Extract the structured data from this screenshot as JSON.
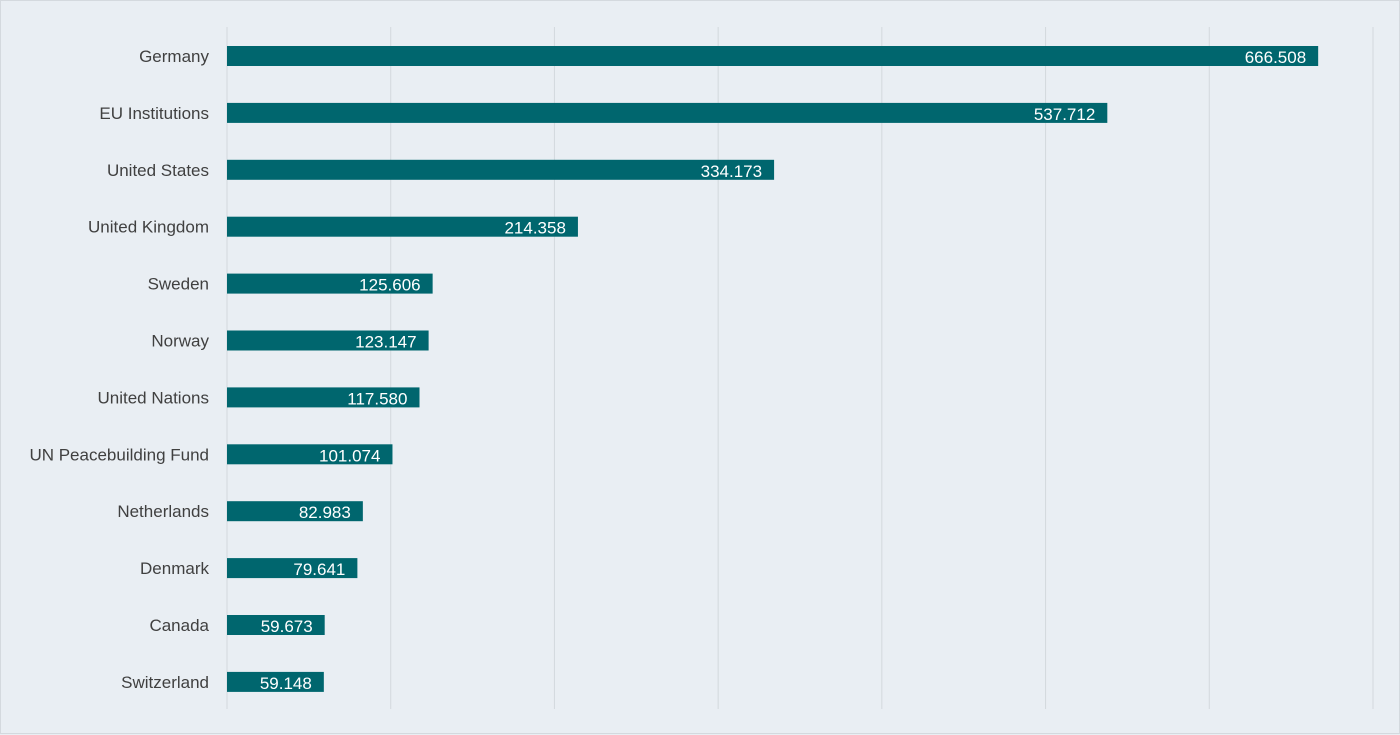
{
  "chart_data": {
    "type": "bar",
    "orientation": "horizontal",
    "categories": [
      "Germany",
      "EU Institutions",
      "United States",
      "United Kingdom",
      "Sweden",
      "Norway",
      "United Nations",
      "UN Peacebuilding Fund",
      "Netherlands",
      "Denmark",
      "Canada",
      "Switzerland"
    ],
    "values": [
      666.508,
      537.712,
      334.173,
      214.358,
      125.606,
      123.147,
      117.58,
      101.074,
      82.983,
      79.641,
      59.673,
      59.148
    ],
    "data_labels": [
      "666.508",
      "537.712",
      "334.173",
      "214.358",
      "125.606",
      "123.147",
      "117.580",
      "101.074",
      "82.983",
      "79.641",
      "59.673",
      "59.148"
    ],
    "xlim": [
      0,
      700
    ],
    "grid_x_values": [
      0,
      100,
      200,
      300,
      400,
      500,
      600,
      700
    ],
    "grid": true,
    "legend": "none",
    "bar_color": "#00666e",
    "background_color": "#e9eef3",
    "title": "",
    "xlabel": "",
    "ylabel": ""
  }
}
